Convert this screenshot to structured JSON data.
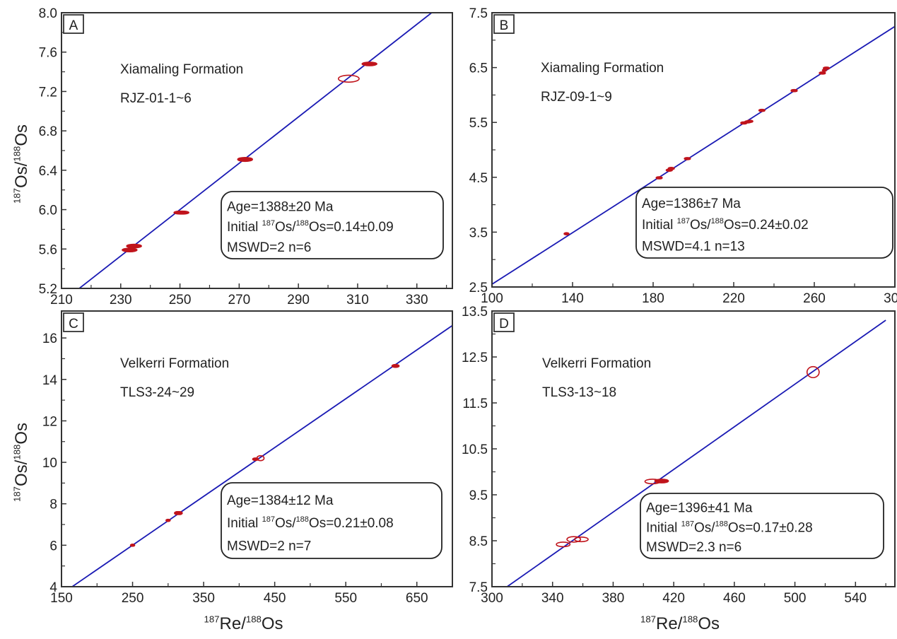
{
  "chart_data": [
    {
      "type": "scatter",
      "panel_label": "A",
      "formation": "Xiamaling Formation",
      "sample": "RJZ-01-1~6",
      "xlabel": "187Re/188Os",
      "ylabel": "187Os/188Os",
      "show_xlabel": false,
      "show_ylabel": true,
      "xlim": [
        210,
        342
      ],
      "ylim": [
        5.2,
        8.0
      ],
      "xticks": [
        210,
        230,
        250,
        270,
        290,
        310,
        330
      ],
      "xticks_minor": [
        220,
        240,
        260,
        280,
        300,
        320,
        340
      ],
      "yticks": [
        5.2,
        5.6,
        6.0,
        6.4,
        6.8,
        7.2,
        7.6,
        8.0
      ],
      "ytick_labels": [
        "5.2",
        "5.6",
        "6.0",
        "6.4",
        "6.8",
        "7.2",
        "7.6",
        "8.0"
      ],
      "points": [
        [
          233,
          5.59,
          2.5,
          0.018
        ],
        [
          234.5,
          5.63,
          2.5,
          0.018
        ],
        [
          250.5,
          5.97,
          2.5,
          0.015
        ],
        [
          272,
          6.51,
          2.5,
          0.02
        ],
        [
          307,
          7.33,
          3.5,
          0.035
        ],
        [
          314,
          7.48,
          2.5,
          0.018
        ]
      ],
      "isochron": [
        [
          216,
          5.2
        ],
        [
          335,
          8.0
        ]
      ],
      "info": {
        "age": "Age=1388±20 Ma",
        "initial_prefix": "Initial ",
        "initial_value": "=0.14±0.09",
        "mswd": "MSWD=2 n=6"
      }
    },
    {
      "type": "scatter",
      "panel_label": "B",
      "formation": "Xiamaling Formation",
      "sample": "RJZ-09-1~9",
      "xlabel": "187Re/188Os",
      "ylabel": "187Os/188Os",
      "show_xlabel": false,
      "show_ylabel": false,
      "xlim": [
        100,
        300
      ],
      "ylim": [
        2.5,
        7.5
      ],
      "xticks": [
        100,
        140,
        180,
        220,
        260,
        300
      ],
      "xticks_minor": [
        120,
        160,
        200,
        240,
        280
      ],
      "yticks": [
        2.5,
        3.5,
        4.5,
        5.5,
        6.5,
        7.5
      ],
      "ytick_labels": [
        "2.5",
        "3.5",
        "4.5",
        "5.5",
        "6.5",
        "7.5"
      ],
      "points": [
        [
          137,
          3.47,
          1.2,
          0.01
        ],
        [
          183,
          4.49,
          1.5,
          0.015
        ],
        [
          188,
          4.63,
          1.5,
          0.02
        ],
        [
          189,
          4.66,
          1.5,
          0.02
        ],
        [
          197,
          4.84,
          1.5,
          0.015
        ],
        [
          225,
          5.49,
          1.5,
          0.015
        ],
        [
          227,
          5.51,
          1.5,
          0.015
        ],
        [
          228,
          5.52,
          1.5,
          0.015
        ],
        [
          234,
          5.72,
          1.5,
          0.015
        ],
        [
          250,
          6.08,
          1.5,
          0.015
        ],
        [
          264,
          6.4,
          1.5,
          0.015
        ],
        [
          266,
          6.49,
          1.5,
          0.015
        ],
        [
          265,
          6.45,
          1,
          0.01
        ]
      ],
      "isochron": [
        [
          100,
          2.55
        ],
        [
          300,
          7.25
        ]
      ],
      "info": {
        "age": "Age=1386±7 Ma",
        "initial_prefix": "Initial ",
        "initial_value": "=0.24±0.02",
        "mswd": "MSWD=4.1 n=13"
      }
    },
    {
      "type": "scatter",
      "panel_label": "C",
      "formation": "Velkerri Formation",
      "sample": "TLS3-24~29",
      "xlabel": "187Re/188Os",
      "ylabel": "187Os/188Os",
      "show_xlabel": true,
      "show_ylabel": true,
      "xlim": [
        150,
        700
      ],
      "ylim": [
        4,
        17.3
      ],
      "xticks": [
        150,
        250,
        350,
        450,
        550,
        650
      ],
      "xticks_minor": [
        200,
        300,
        400,
        500,
        600
      ],
      "yticks": [
        4,
        6,
        8,
        10,
        12,
        14,
        16
      ],
      "ytick_labels": [
        "4",
        "6",
        "8",
        "10",
        "12",
        "14",
        "16"
      ],
      "points": [
        [
          250,
          6.0,
          3,
          0.04
        ],
        [
          300,
          7.2,
          3,
          0.04
        ],
        [
          313,
          7.55,
          4,
          0.07
        ],
        [
          316,
          7.55,
          4,
          0.07
        ],
        [
          423,
          10.15,
          4,
          0.06
        ],
        [
          430,
          10.2,
          5,
          0.12
        ],
        [
          620,
          14.65,
          5,
          0.07
        ]
      ],
      "isochron": [
        [
          165,
          4
        ],
        [
          700,
          16.6
        ]
      ],
      "info": {
        "age": "Age=1384±12 Ma",
        "initial_prefix": "Initial ",
        "initial_value": "=0.21±0.08",
        "mswd": "MSWD=2 n=7"
      }
    },
    {
      "type": "scatter",
      "panel_label": "D",
      "formation": "Velkerri Formation",
      "sample": "TLS3-13~18",
      "xlabel": "187Re/188Os",
      "ylabel": "187Os/188Os",
      "show_xlabel": true,
      "show_ylabel": false,
      "xlim": [
        300,
        566
      ],
      "ylim": [
        7.5,
        13.5
      ],
      "xticks": [
        300,
        340,
        380,
        420,
        460,
        500,
        540
      ],
      "xticks_minor": [
        320,
        360,
        400,
        440,
        480,
        520,
        560
      ],
      "yticks": [
        7.5,
        8.5,
        9.5,
        10.5,
        11.5,
        12.5,
        13.5
      ],
      "ytick_labels": [
        "7.5",
        "8.5",
        "9.5",
        "10.5",
        "11.5",
        "12.5",
        "13.5"
      ],
      "points": [
        [
          347,
          8.42,
          4.5,
          0.05
        ],
        [
          354,
          8.53,
          4.5,
          0.06
        ],
        [
          359,
          8.53,
          4.5,
          0.05
        ],
        [
          406,
          9.79,
          5,
          0.05
        ],
        [
          412,
          9.8,
          4.5,
          0.04
        ],
        [
          512,
          12.17,
          4,
          0.12
        ]
      ],
      "isochron": [
        [
          310,
          7.5
        ],
        [
          560,
          13.3
        ]
      ],
      "info": {
        "age": "Age=1396±41 Ma",
        "initial_prefix": "Initial ",
        "initial_value": "=0.17±0.28",
        "mswd": "MSWD=2.3 n=6"
      }
    }
  ],
  "colors": {
    "isochron": "#1a1ab4",
    "ellipse": "#c0141c",
    "axis": "#333333"
  }
}
